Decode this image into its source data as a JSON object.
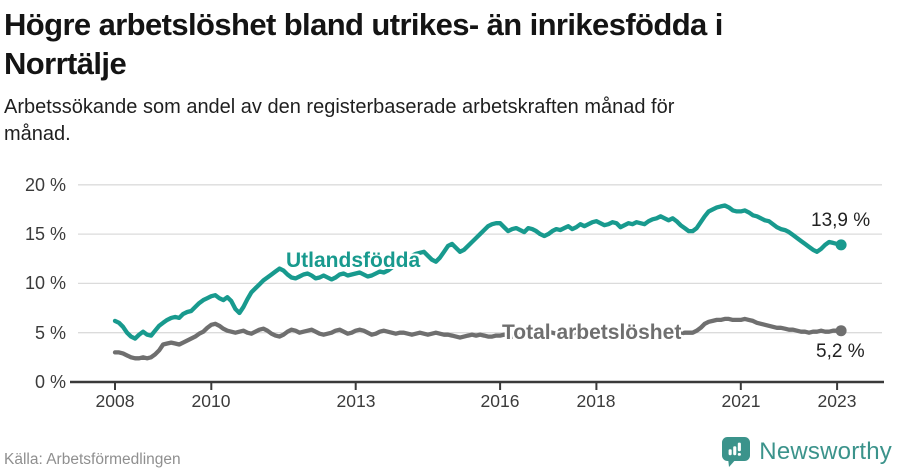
{
  "colors": {
    "teal": "#189A8E",
    "gray": "#6F6F6F",
    "grid": "#DBDBDB",
    "axis": "#3A3A3A",
    "logo_teal": "#3B938B",
    "value_label": "#222222"
  },
  "footer": {
    "source": "Källa: Arbetsförmedlingen",
    "brand": "Newsworthy"
  },
  "chart_data": {
    "type": "line",
    "title": "Högre arbetslöshet bland utrikes- än inrikesfödda i\nNorrtälje",
    "subtitle": "Arbetssökande som andel av den registerbaserade arbetskraften månad för\nmånad.",
    "unit": "%",
    "frequency": "monthly",
    "x_start": "2008-01",
    "x_end": "2023-02",
    "ylim": [
      0,
      20
    ],
    "grid": "horizontal",
    "legend": "inline-labels",
    "y_ticks": [
      0,
      5,
      10,
      15,
      20
    ],
    "y_tick_labels": [
      "0 %",
      "5 %",
      "10 %",
      "15 %",
      "20 %"
    ],
    "x_tick_years": [
      2008,
      2010,
      2013,
      2016,
      2018,
      2021,
      2023
    ],
    "x_tick_labels": [
      "2008",
      "2010",
      "2013",
      "2016",
      "2018",
      "2021",
      "2023"
    ],
    "series": [
      {
        "name": "Utlandsfödda",
        "color": "#189A8E",
        "end_value": 13.9,
        "end_label": "13,9 %",
        "values": [
          6.2,
          6.0,
          5.6,
          5.0,
          4.6,
          4.4,
          4.8,
          5.1,
          4.8,
          4.7,
          5.2,
          5.7,
          6.0,
          6.3,
          6.5,
          6.6,
          6.5,
          6.9,
          7.1,
          7.2,
          7.6,
          8.0,
          8.3,
          8.5,
          8.7,
          8.8,
          8.5,
          8.3,
          8.6,
          8.2,
          7.4,
          7.0,
          7.6,
          8.4,
          9.1,
          9.5,
          9.9,
          10.3,
          10.6,
          10.9,
          11.2,
          11.5,
          11.3,
          10.9,
          10.6,
          10.5,
          10.7,
          10.9,
          11.0,
          10.8,
          10.5,
          10.6,
          10.8,
          10.6,
          10.4,
          10.6,
          10.9,
          11.0,
          10.8,
          10.9,
          11.0,
          11.1,
          10.9,
          10.7,
          10.8,
          11.0,
          11.2,
          11.1,
          11.3,
          11.6,
          11.9,
          12.2,
          12.4,
          12.6,
          12.8,
          13.0,
          13.1,
          13.2,
          12.8,
          12.4,
          12.2,
          12.6,
          13.2,
          13.8,
          14.0,
          13.6,
          13.2,
          13.4,
          13.8,
          14.2,
          14.6,
          15.0,
          15.4,
          15.8,
          16.0,
          16.1,
          16.1,
          15.7,
          15.3,
          15.5,
          15.6,
          15.4,
          15.2,
          15.6,
          15.5,
          15.3,
          15.0,
          14.8,
          15.0,
          15.3,
          15.5,
          15.4,
          15.6,
          15.8,
          15.5,
          15.7,
          16.0,
          15.8,
          16.0,
          16.2,
          16.3,
          16.1,
          15.9,
          16.0,
          16.2,
          16.1,
          15.7,
          15.9,
          16.1,
          16.0,
          16.2,
          16.1,
          16.0,
          16.3,
          16.5,
          16.6,
          16.8,
          16.6,
          16.4,
          16.6,
          16.3,
          15.9,
          15.6,
          15.3,
          15.3,
          15.6,
          16.2,
          16.8,
          17.3,
          17.5,
          17.7,
          17.8,
          17.9,
          17.7,
          17.4,
          17.3,
          17.3,
          17.4,
          17.2,
          16.9,
          16.8,
          16.6,
          16.4,
          16.3,
          16.0,
          15.7,
          15.5,
          15.4,
          15.2,
          14.9,
          14.6,
          14.3,
          14.0,
          13.7,
          13.4,
          13.2,
          13.5,
          13.9,
          14.2,
          14.1,
          14.0,
          13.9
        ]
      },
      {
        "name": "Total arbetslöshet",
        "color": "#6F6F6F",
        "end_value": 5.2,
        "end_label": "5,2 %",
        "values": [
          3.0,
          3.0,
          2.9,
          2.7,
          2.5,
          2.4,
          2.4,
          2.5,
          2.4,
          2.5,
          2.8,
          3.2,
          3.8,
          3.9,
          4.0,
          3.9,
          3.8,
          4.0,
          4.2,
          4.4,
          4.6,
          4.9,
          5.1,
          5.5,
          5.8,
          5.9,
          5.7,
          5.4,
          5.2,
          5.1,
          5.0,
          5.1,
          5.2,
          5.0,
          4.9,
          5.1,
          5.3,
          5.4,
          5.2,
          4.9,
          4.7,
          4.6,
          4.8,
          5.1,
          5.3,
          5.2,
          5.0,
          5.1,
          5.2,
          5.3,
          5.1,
          4.9,
          4.8,
          4.9,
          5.0,
          5.2,
          5.3,
          5.1,
          4.9,
          5.0,
          5.2,
          5.3,
          5.2,
          5.0,
          4.8,
          4.9,
          5.1,
          5.2,
          5.1,
          5.0,
          4.9,
          5.0,
          5.0,
          4.9,
          4.8,
          4.9,
          5.0,
          4.9,
          4.8,
          4.9,
          5.0,
          4.9,
          4.8,
          4.8,
          4.7,
          4.6,
          4.5,
          4.6,
          4.7,
          4.8,
          4.7,
          4.8,
          4.7,
          4.6,
          4.6,
          4.7,
          4.7,
          4.8,
          4.7,
          4.6,
          4.7,
          4.8,
          4.9,
          5.0,
          4.9,
          4.8,
          4.9,
          5.0,
          5.1,
          5.0,
          4.9,
          5.0,
          5.1,
          5.0,
          4.9,
          5.0,
          5.1,
          5.0,
          5.1,
          5.2,
          5.1,
          5.0,
          4.9,
          4.8,
          4.9,
          5.0,
          4.9,
          4.8,
          4.9,
          4.8,
          4.9,
          5.0,
          5.0,
          5.1,
          5.0,
          5.1,
          5.2,
          5.1,
          5.0,
          5.1,
          5.0,
          4.9,
          5.0,
          5.0,
          5.0,
          5.2,
          5.5,
          5.9,
          6.1,
          6.2,
          6.3,
          6.3,
          6.4,
          6.4,
          6.3,
          6.3,
          6.3,
          6.4,
          6.3,
          6.2,
          6.0,
          5.9,
          5.8,
          5.7,
          5.6,
          5.5,
          5.5,
          5.4,
          5.3,
          5.3,
          5.2,
          5.1,
          5.1,
          5.0,
          5.1,
          5.1,
          5.2,
          5.1,
          5.1,
          5.2,
          5.2,
          5.2
        ]
      }
    ]
  }
}
